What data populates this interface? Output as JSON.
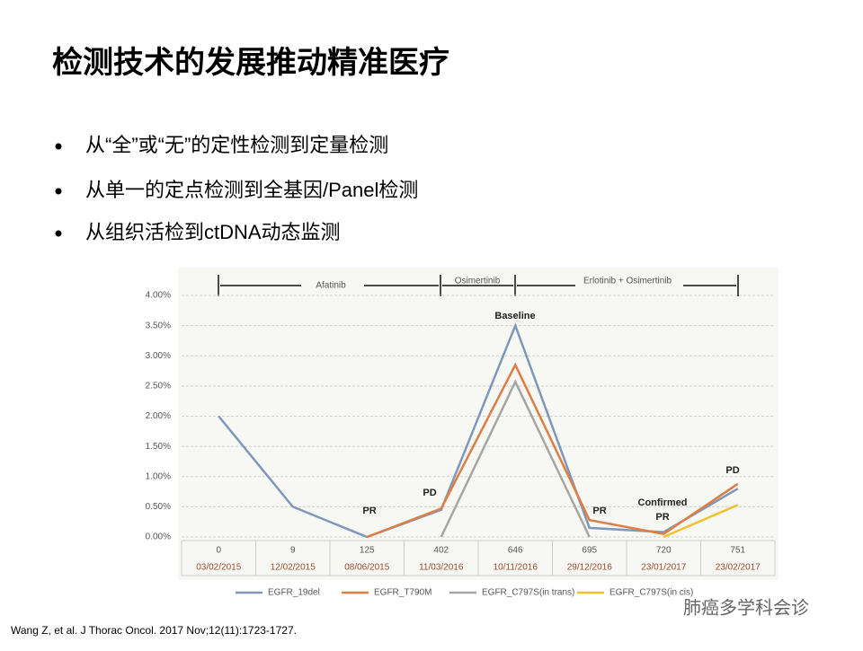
{
  "title": "检测技术的发展推动精准医疗",
  "bullets": [
    "从“全”或“无”的定性检测到定量检测",
    "从单一的定点检测到全基因/Panel检测",
    "从组织活检到ctDNA动态监测"
  ],
  "chart_data": {
    "type": "line",
    "categories": [
      "0",
      "9",
      "125",
      "402",
      "646",
      "695",
      "720",
      "751"
    ],
    "dates": [
      "03/02/2015",
      "12/02/2015",
      "08/06/2015",
      "11/03/2016",
      "10/11/2016",
      "29/12/2016",
      "23/01/2017",
      "23/02/2017"
    ],
    "ylim": [
      0,
      4
    ],
    "yticks": [
      {
        "value": 0,
        "label": "0.00%"
      },
      {
        "value": 0.5,
        "label": "0.50%"
      },
      {
        "value": 1,
        "label": "1.00%"
      },
      {
        "value": 1.5,
        "label": "1.50%"
      },
      {
        "value": 2,
        "label": "2.00%"
      },
      {
        "value": 2.5,
        "label": "2.50%"
      },
      {
        "value": 3,
        "label": "3.00%"
      },
      {
        "value": 3.5,
        "label": "3.50%"
      },
      {
        "value": 4,
        "label": "4.00%"
      }
    ],
    "grid": true,
    "series": [
      {
        "name": "EGFR_19del",
        "color": "#7f97ba",
        "values": [
          2.0,
          0.5,
          0.0,
          0.45,
          3.5,
          0.15,
          0.08,
          0.8
        ]
      },
      {
        "name": "EGFR_T790M",
        "color": "#dd7f45",
        "values": [
          null,
          null,
          0.0,
          0.47,
          2.85,
          0.28,
          0.05,
          0.88
        ]
      },
      {
        "name": "EGFR_C797S(in trans)",
        "color": "#a5a5a5",
        "values": [
          null,
          null,
          null,
          0.0,
          2.57,
          0.0,
          null,
          null
        ]
      },
      {
        "name": "EGFR_C797S(in cis)",
        "color": "#f2c12e",
        "values": [
          null,
          null,
          null,
          null,
          null,
          null,
          0.0,
          0.53
        ]
      }
    ],
    "periods": [
      "Afatinib",
      "Osimertinib",
      "Erlotinib + Osimertinib"
    ],
    "annotations": [
      "PR",
      "PD",
      "Baseline",
      "PR",
      "Confirmed",
      "PR",
      "PD"
    ]
  },
  "citation": "Wang Z, et al. J Thorac Oncol. 2017 Nov;12(11):1723-1727.",
  "watermark": "肺癌多学科会诊"
}
